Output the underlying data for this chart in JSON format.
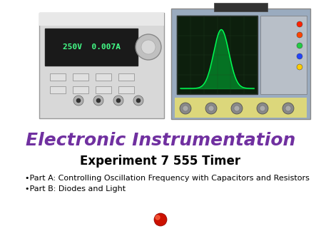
{
  "background_color": "#ffffff",
  "title_text": "Electronic Instrumentation",
  "title_color": "#7030A0",
  "title_fontsize": 18,
  "title_bold": true,
  "subtitle_text": "Experiment 7 555 Timer",
  "subtitle_fontsize": 12,
  "subtitle_bold": true,
  "subtitle_color": "#000000",
  "bullet1": "•Part A: Controlling Oscillation Frequency with Capacitors and Resistors",
  "bullet2": "•Part B: Diodes and Light",
  "bullet_fontsize": 8,
  "bullet_color": "#000000",
  "fig_width": 4.5,
  "fig_height": 3.38,
  "dpi": 100
}
